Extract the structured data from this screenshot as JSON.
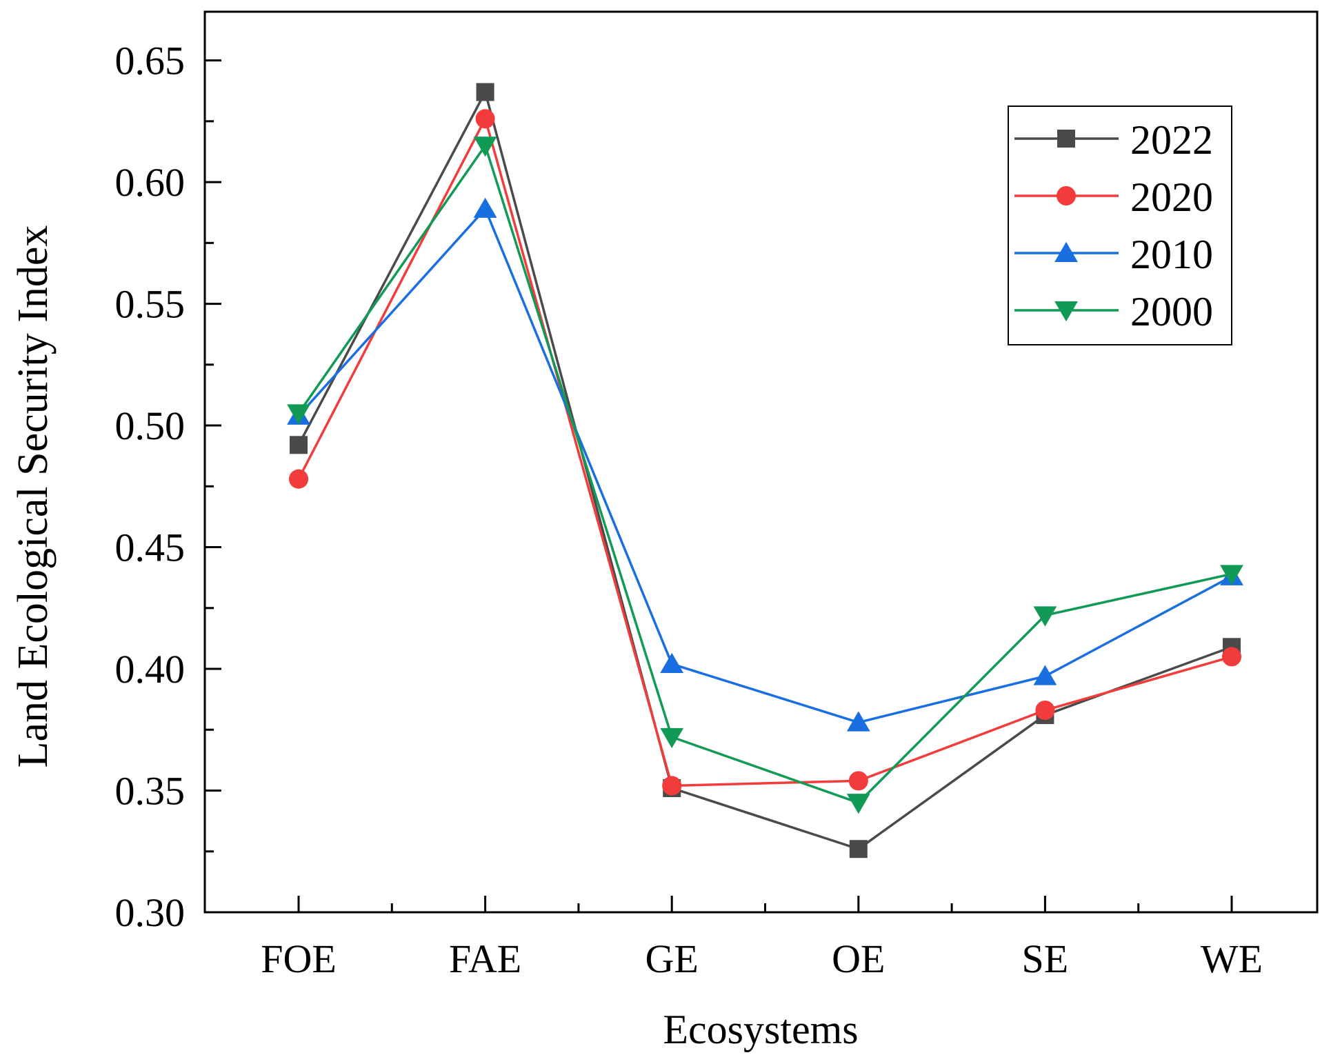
{
  "chart_data": {
    "type": "line",
    "title": "",
    "xlabel": "Ecosystems",
    "ylabel": "Land Ecological Security Index",
    "categories": [
      "FOE",
      "FAE",
      "GE",
      "OE",
      "SE",
      "WE"
    ],
    "ylim": [
      0.3,
      0.67
    ],
    "yticks": [
      "0.30",
      "0.35",
      "0.40",
      "0.45",
      "0.50",
      "0.55",
      "0.60",
      "0.65"
    ],
    "grid": false,
    "legend_position": "top-right",
    "series": [
      {
        "name": "2022",
        "marker": "square",
        "color": "#4a4a4a",
        "values": [
          0.492,
          0.637,
          0.351,
          0.326,
          0.381,
          0.409
        ]
      },
      {
        "name": "2020",
        "marker": "circle",
        "color": "#f23b3b",
        "values": [
          0.478,
          0.626,
          0.352,
          0.354,
          0.383,
          0.405
        ]
      },
      {
        "name": "2010",
        "marker": "triangle-up",
        "color": "#1a6fe0",
        "values": [
          0.504,
          0.589,
          0.402,
          0.378,
          0.397,
          0.438
        ]
      },
      {
        "name": "2000",
        "marker": "triangle-down",
        "color": "#119a55",
        "values": [
          0.505,
          0.615,
          0.372,
          0.345,
          0.422,
          0.439
        ]
      }
    ]
  }
}
